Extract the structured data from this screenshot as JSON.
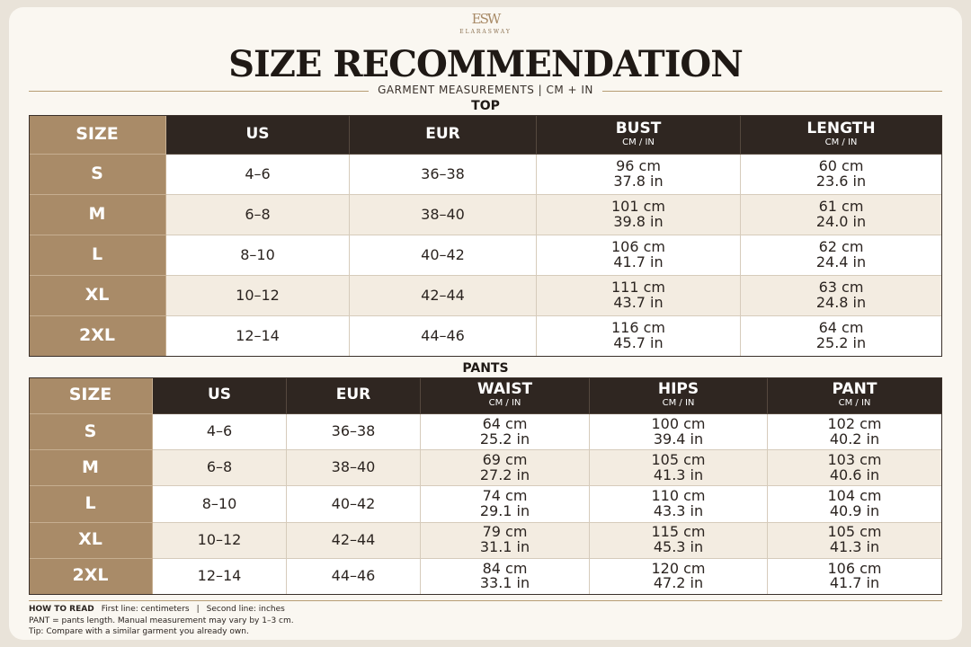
{
  "brand": {
    "monogram": "ESW",
    "name": "ELARASWAY"
  },
  "header": {
    "title": "SIZE RECOMMENDATION",
    "subtitle": "GARMENT MEASUREMENTS | CM + IN"
  },
  "tables": [
    {
      "title": "TOP",
      "columns": [
        {
          "label": "SIZE"
        },
        {
          "label": "US"
        },
        {
          "label": "EUR"
        },
        {
          "label": "BUST",
          "unit": "CM / IN"
        },
        {
          "label": "LENGTH",
          "unit": "CM / IN"
        }
      ],
      "rows": [
        [
          "S",
          "4–6",
          "36–38",
          [
            "96 cm",
            "37.8 in"
          ],
          [
            "60 cm",
            "23.6 in"
          ]
        ],
        [
          "M",
          "6–8",
          "38–40",
          [
            "101 cm",
            "39.8 in"
          ],
          [
            "61 cm",
            "24.0 in"
          ]
        ],
        [
          "L",
          "8–10",
          "40–42",
          [
            "106 cm",
            "41.7 in"
          ],
          [
            "62 cm",
            "24.4 in"
          ]
        ],
        [
          "XL",
          "10–12",
          "42–44",
          [
            "111 cm",
            "43.7 in"
          ],
          [
            "63 cm",
            "24.8 in"
          ]
        ],
        [
          "2XL",
          "12–14",
          "44–46",
          [
            "116 cm",
            "45.7 in"
          ],
          [
            "64 cm",
            "25.2 in"
          ]
        ]
      ]
    },
    {
      "title": "PANTS",
      "columns": [
        {
          "label": "SIZE"
        },
        {
          "label": "US"
        },
        {
          "label": "EUR"
        },
        {
          "label": "WAIST",
          "unit": "CM / IN"
        },
        {
          "label": "HIPS",
          "unit": "CM / IN"
        },
        {
          "label": "PANT",
          "unit": "CM / IN"
        }
      ],
      "rows": [
        [
          "S",
          "4–6",
          "36–38",
          [
            "64 cm",
            "25.2 in"
          ],
          [
            "100 cm",
            "39.4 in"
          ],
          [
            "102 cm",
            "40.2 in"
          ]
        ],
        [
          "M",
          "6–8",
          "38–40",
          [
            "69 cm",
            "27.2 in"
          ],
          [
            "105 cm",
            "41.3 in"
          ],
          [
            "103 cm",
            "40.6 in"
          ]
        ],
        [
          "L",
          "8–10",
          "40–42",
          [
            "74 cm",
            "29.1 in"
          ],
          [
            "110 cm",
            "43.3 in"
          ],
          [
            "104 cm",
            "40.9 in"
          ]
        ],
        [
          "XL",
          "10–12",
          "42–44",
          [
            "79 cm",
            "31.1 in"
          ],
          [
            "115 cm",
            "45.3 in"
          ],
          [
            "105 cm",
            "41.3 in"
          ]
        ],
        [
          "2XL",
          "12–14",
          "44–46",
          [
            "84 cm",
            "33.1 in"
          ],
          [
            "120 cm",
            "47.2 in"
          ],
          [
            "106 cm",
            "41.7 in"
          ]
        ]
      ]
    }
  ],
  "footer": {
    "heading": "HOW TO READ",
    "line1": "First line: centimeters",
    "separator": "|",
    "line2": "Second line: inches",
    "note": "PANT = pants length. Manual measurement may vary by 1–3 cm.",
    "tip": "Tip: Compare with a similar garment you already own."
  }
}
